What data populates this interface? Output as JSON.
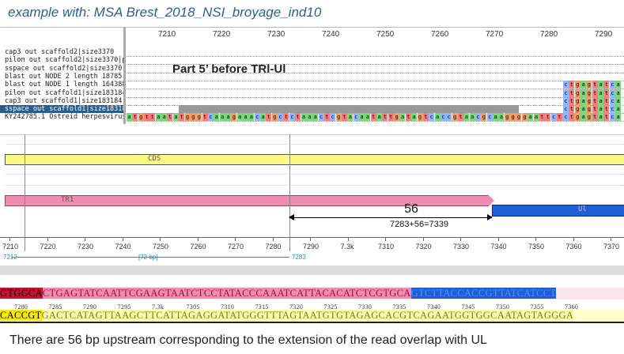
{
  "title": "example with: MSA Brest_2018_NSI_broyage_ind10",
  "msa": {
    "ruler_ticks": [
      "7210",
      "7220",
      "7230",
      "7240",
      "7250",
      "7260",
      "7270",
      "7280",
      "7290"
    ],
    "sequence_names": [
      "cap3 out scaffold2|size3370",
      "pilon out scaffold2|size3370|pilon",
      "sspace out scaffold2|size3370",
      "blast out NODE 2 length 18785 c",
      "blast out NODE 1 length 164388",
      "pilon out scaffold1|size183184|pil",
      "cap3 out scaffold1|size183184",
      "sspace out scaffold1|size183184",
      "KY242785.1 Ostreid herpesvirus 1"
    ],
    "selected_index": 7,
    "annotation": "Part 5’ before TRl-Ul",
    "ref_sequence": "atgttaatatgggtcaaagaaacatgctctaaactcgtacaatattgatagtcaccgtaacgcaaggggaattctgtgcca",
    "right_block": "ctgagtatca",
    "colors": {
      "a": "#7ad77a",
      "c": "#8fb6ff",
      "g": "#f2a06b",
      "t": "#ff7c7c",
      "gap": "#999999"
    }
  },
  "genome_view": {
    "cds_label": "CDS",
    "tr1_label": "TR1",
    "ul_label": "Ul",
    "gap_value": "56",
    "sum_text": "7283+56=7339",
    "axis_ticks": [
      "7210",
      "7220",
      "7230",
      "7240",
      "7250",
      "7260",
      "7270",
      "7280",
      "7290",
      "7.3k",
      "7310",
      "7320",
      "7330",
      "7340",
      "7350",
      "7360",
      "7370"
    ],
    "selection_start": "7212",
    "selection_length": "[72 bp]",
    "selection_end": "7283"
  },
  "sequence_strip": {
    "top_red": "GTGGCA",
    "top_pink": "CTGAGTATCAATTCGAAGTAATCTCCTATACCCAAATCATTACACATCTCGTGCA",
    "top_blue": "GTCTTACCACCGTTATCATCCT",
    "ticks": [
      "7280",
      "7285",
      "7290",
      "7295",
      "7.3k",
      "7305",
      "7310",
      "7315",
      "7320",
      "7325",
      "7330",
      "7335",
      "7340",
      "7345",
      "7350",
      "7355",
      "7360"
    ],
    "bot_yellow": "CACCGT",
    "bot_light": "GACTCATAGTTAAGCTTCATTAGAGGATATGGGTTTAGTAATGTGTAGAGCACGTCAGAATGGTGGCAATAGTAGGGA"
  },
  "footer": "There are 56 bp upstream corresponding to the extension of the read overlap with UL"
}
